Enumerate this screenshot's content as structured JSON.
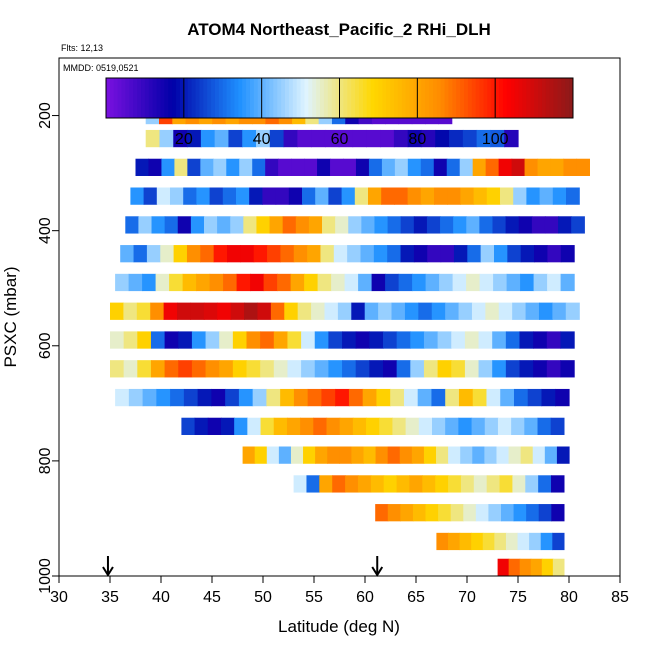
{
  "chart_data": {
    "type": "heatmap",
    "title": "ATOM4 Northeast_Pacific_2 RHi_DLH",
    "notes": [
      "Flts: 12,13",
      "MMDD: 0519,0521"
    ],
    "xlabel": "Latitude (deg N)",
    "ylabel": "PSXC (mbar)",
    "xlim": [
      30,
      85
    ],
    "ylim": [
      1000,
      100
    ],
    "x_ticks": [
      "30",
      "35",
      "40",
      "45",
      "50",
      "55",
      "60",
      "65",
      "70",
      "75",
      "80",
      "85"
    ],
    "y_ticks": [
      "200",
      "400",
      "600",
      "800",
      "1000"
    ],
    "colorbar": {
      "range": [
        0,
        120
      ],
      "ticks": [
        "20",
        "40",
        "60",
        "80",
        "100"
      ],
      "colors": [
        "#7b10e0",
        "#0000a8",
        "#1e90ff",
        "#dff4ff",
        "#ffd700",
        "#ff8c00",
        "#ff0000",
        "#8b1a1a"
      ]
    },
    "arrows_at_latitude": [
      34.8,
      61.2
    ],
    "rows": [
      {
        "p": 200,
        "lat_min": 38.5,
        "lat_max": 68.5,
        "values": [
          45,
          95,
          80,
          85,
          80,
          85,
          80,
          85,
          85,
          90,
          85,
          75,
          60,
          45,
          30,
          15,
          8,
          5,
          5,
          5,
          5,
          5,
          5
        ]
      },
      {
        "p": 240,
        "lat_min": 38.5,
        "lat_max": 75.0,
        "values": [
          60,
          45,
          15,
          20,
          35,
          40,
          25,
          35,
          45,
          25,
          10,
          5,
          5,
          5,
          5,
          5,
          5,
          5,
          10,
          15,
          12,
          18,
          22,
          25,
          30,
          28,
          12
        ]
      },
      {
        "p": 290,
        "lat_min": 37.5,
        "lat_max": 82.0,
        "values": [
          20,
          15,
          35,
          60,
          25,
          40,
          45,
          35,
          45,
          30,
          10,
          5,
          5,
          5,
          15,
          5,
          5,
          15,
          30,
          40,
          45,
          35,
          30,
          15,
          30,
          45,
          80,
          90,
          105,
          110,
          85,
          80,
          80,
          85,
          85
        ]
      },
      {
        "p": 340,
        "lat_min": 37.0,
        "lat_max": 81.0,
        "values": [
          35,
          25,
          50,
          45,
          30,
          35,
          25,
          30,
          35,
          20,
          10,
          10,
          15,
          30,
          40,
          25,
          35,
          60,
          80,
          90,
          90,
          85,
          80,
          85,
          85,
          80,
          75,
          70,
          60,
          45,
          35,
          40,
          35,
          30
        ]
      },
      {
        "p": 390,
        "lat_min": 36.5,
        "lat_max": 81.5,
        "values": [
          30,
          45,
          35,
          30,
          15,
          35,
          45,
          40,
          45,
          60,
          70,
          80,
          90,
          85,
          80,
          60,
          55,
          45,
          40,
          35,
          30,
          25,
          20,
          25,
          30,
          35,
          40,
          30,
          25,
          20,
          15,
          10,
          10,
          20,
          25
        ]
      },
      {
        "p": 440,
        "lat_min": 36.0,
        "lat_max": 80.5,
        "values": [
          40,
          30,
          45,
          55,
          70,
          85,
          90,
          100,
          105,
          105,
          100,
          95,
          90,
          85,
          80,
          60,
          50,
          45,
          40,
          35,
          30,
          20,
          15,
          10,
          10,
          20,
          30,
          45,
          35,
          25,
          20,
          15,
          10,
          15
        ]
      },
      {
        "p": 490,
        "lat_min": 35.5,
        "lat_max": 80.5,
        "values": [
          45,
          40,
          35,
          55,
          65,
          75,
          80,
          85,
          90,
          100,
          105,
          95,
          90,
          80,
          70,
          60,
          55,
          50,
          40,
          15,
          25,
          30,
          35,
          40,
          45,
          50,
          55,
          50,
          45,
          40,
          35,
          45,
          50,
          40
        ]
      },
      {
        "p": 540,
        "lat_min": 35.0,
        "lat_max": 81.0,
        "values": [
          70,
          60,
          65,
          85,
          105,
          110,
          110,
          108,
          105,
          110,
          115,
          110,
          90,
          70,
          60,
          55,
          50,
          45,
          20,
          40,
          45,
          40,
          35,
          30,
          35,
          40,
          45,
          50,
          55,
          50,
          45,
          40,
          35,
          40,
          45
        ]
      },
      {
        "p": 590,
        "lat_min": 35.0,
        "lat_max": 80.5,
        "values": [
          55,
          60,
          70,
          30,
          15,
          20,
          35,
          45,
          55,
          70,
          85,
          90,
          80,
          65,
          50,
          35,
          25,
          20,
          15,
          20,
          25,
          30,
          35,
          40,
          45,
          50,
          55,
          50,
          40,
          30,
          20,
          15,
          10,
          20
        ]
      },
      {
        "p": 640,
        "lat_min": 35.0,
        "lat_max": 80.5,
        "values": [
          60,
          55,
          65,
          80,
          90,
          95,
          90,
          85,
          80,
          70,
          65,
          60,
          55,
          50,
          45,
          40,
          35,
          30,
          25,
          20,
          15,
          30,
          45,
          60,
          70,
          65,
          55,
          45,
          35,
          25,
          20,
          15,
          10,
          15
        ]
      },
      {
        "p": 690,
        "lat_min": 35.5,
        "lat_max": 80.0,
        "values": [
          50,
          45,
          40,
          35,
          30,
          25,
          20,
          15,
          25,
          35,
          45,
          60,
          75,
          85,
          90,
          95,
          100,
          90,
          80,
          70,
          60,
          50,
          40,
          30,
          60,
          75,
          65,
          50,
          40,
          30,
          25,
          20,
          15
        ]
      },
      {
        "p": 740,
        "lat_min": 42.0,
        "lat_max": 79.5,
        "values": [
          25,
          20,
          15,
          20,
          35,
          50,
          65,
          75,
          80,
          85,
          90,
          85,
          80,
          75,
          70,
          65,
          60,
          55,
          50,
          45,
          40,
          35,
          40,
          45,
          50,
          45,
          40,
          30,
          25
        ]
      },
      {
        "p": 790,
        "lat_min": 48.0,
        "lat_max": 80.0,
        "values": [
          80,
          70,
          50,
          40,
          55,
          70,
          80,
          85,
          85,
          80,
          75,
          85,
          90,
          85,
          80,
          70,
          60,
          50,
          45,
          40,
          45,
          50,
          55,
          60,
          50,
          40,
          20
        ]
      },
      {
        "p": 840,
        "lat_min": 53.0,
        "lat_max": 79.5,
        "values": [
          50,
          30,
          80,
          90,
          85,
          80,
          75,
          70,
          75,
          80,
          75,
          70,
          65,
          60,
          55,
          60,
          65,
          55,
          45,
          30,
          15
        ]
      },
      {
        "p": 890,
        "lat_min": 61.0,
        "lat_max": 79.5,
        "values": [
          90,
          85,
          80,
          75,
          70,
          65,
          60,
          55,
          50,
          45,
          40,
          35,
          30,
          25,
          15
        ]
      },
      {
        "p": 940,
        "lat_min": 67.0,
        "lat_max": 79.5,
        "values": [
          85,
          80,
          75,
          70,
          65,
          60,
          55,
          50,
          45,
          35,
          25
        ]
      },
      {
        "p": 985,
        "lat_min": 73.0,
        "lat_max": 79.5,
        "values": [
          105,
          90,
          85,
          80,
          70,
          60
        ]
      }
    ]
  }
}
